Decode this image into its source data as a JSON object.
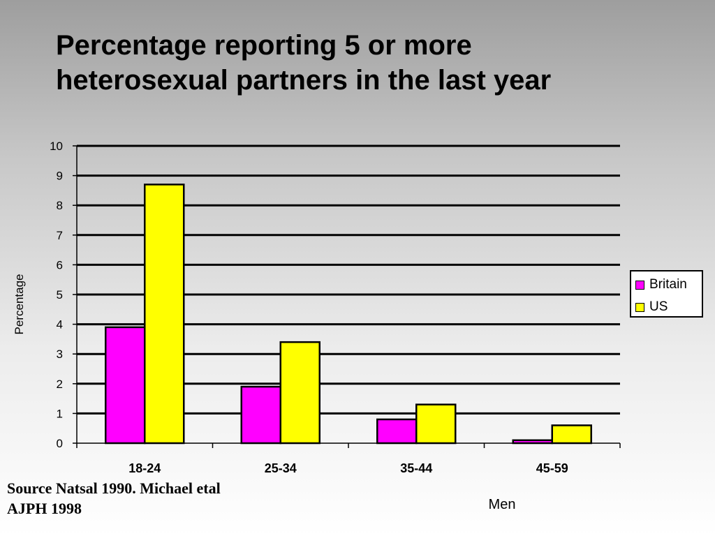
{
  "title": {
    "line1": "Percentage reporting 5 or more",
    "line2": "heterosexual partners in the last year"
  },
  "source": {
    "line1": "Source Natsal 1990. Michael etal",
    "line2": "AJPH 1998"
  },
  "colors": {
    "britain": "#ff00ff",
    "us": "#ffff00",
    "outline": "#000000"
  },
  "chart_data": {
    "type": "bar",
    "title": "Percentage reporting 5 or more heterosexual partners in the last year",
    "xlabel": "Men",
    "ylabel": "Percentage",
    "categories": [
      "18-24",
      "25-34",
      "35-44",
      "45-59"
    ],
    "series": [
      {
        "name": "Britain",
        "values": [
          3.9,
          1.9,
          0.8,
          0.1
        ]
      },
      {
        "name": "US",
        "values": [
          8.7,
          3.4,
          1.3,
          0.6
        ]
      }
    ],
    "ylim": [
      0,
      10
    ],
    "yticks": [
      "0",
      "1",
      "2",
      "3",
      "4",
      "5",
      "6",
      "7",
      "8",
      "9",
      "10"
    ],
    "grid": true,
    "legend_position": "right"
  }
}
